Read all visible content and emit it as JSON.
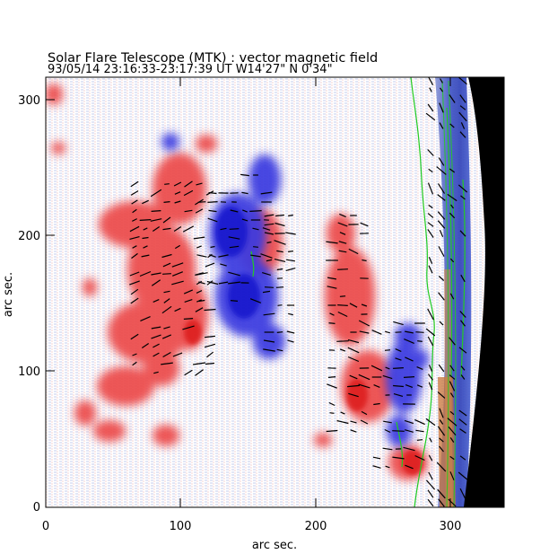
{
  "title": "Solar Flare Telescope (MTK) : vector magnetic field",
  "subtitle": "93/05/14  23:16:33-23:17:39 UT    W14'27\"  N 0'34\"",
  "axes": {
    "xlabel": "arc sec.",
    "ylabel": "arc sec.",
    "xlim": [
      0,
      340
    ],
    "ylim": [
      0,
      315
    ],
    "xticks": [
      "0",
      "100",
      "200",
      "300"
    ],
    "yticks": [
      "0",
      "100",
      "200",
      "300"
    ]
  },
  "colors": {
    "positive_polarity": "#e83a3a",
    "negative_polarity": "#3333dd",
    "transverse_vector": "#000000",
    "neutral_line": "#22cc22",
    "off_limb": "#000000"
  }
}
